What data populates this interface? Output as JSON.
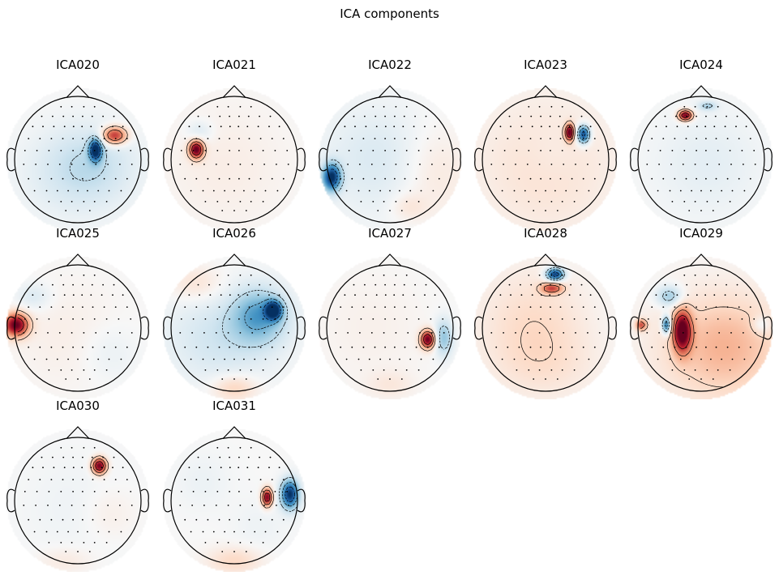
{
  "figure": {
    "title": "ICA components"
  },
  "colormap": {
    "negative": "#053061",
    "neutral": "#f7f7f7",
    "positive": "#67001f"
  },
  "chart_data": {
    "type": "heatmap",
    "title": "ICA components",
    "layout": {
      "rows": 3,
      "cols": 5
    },
    "components": [
      {
        "name": "ICA020",
        "sources": [
          {
            "x": 0.28,
            "y": -0.15,
            "w": -1.0,
            "sx": 0.07,
            "sy": 0.12
          },
          {
            "x": 0.2,
            "y": 0.1,
            "w": -0.25,
            "sx": 0.5,
            "sy": 0.45
          },
          {
            "x": 0.58,
            "y": -0.38,
            "w": 0.8,
            "sx": 0.14,
            "sy": 0.1
          },
          {
            "x": -0.4,
            "y": 0.3,
            "w": -0.06,
            "sx": 0.5,
            "sy": 0.5
          }
        ]
      },
      {
        "name": "ICA021",
        "sources": [
          {
            "x": -0.6,
            "y": -0.16,
            "w": 1.0,
            "sx": 0.08,
            "sy": 0.1
          },
          {
            "x": -0.15,
            "y": 0.1,
            "w": 0.07,
            "sx": 0.7,
            "sy": 0.7
          },
          {
            "x": -0.55,
            "y": -0.45,
            "w": -0.15,
            "sx": 0.15,
            "sy": 0.12
          }
        ]
      },
      {
        "name": "ICA022",
        "sources": [
          {
            "x": -0.92,
            "y": 0.28,
            "w": -1.0,
            "sx": 0.1,
            "sy": 0.15
          },
          {
            "x": -0.2,
            "y": 0.0,
            "w": -0.15,
            "sx": 0.6,
            "sy": 0.6
          },
          {
            "x": 0.7,
            "y": 0.2,
            "w": 0.12,
            "sx": 0.4,
            "sy": 0.5
          },
          {
            "x": 0.3,
            "y": 0.75,
            "w": 0.12,
            "sx": 0.2,
            "sy": 0.15
          }
        ]
      },
      {
        "name": "ICA023",
        "sources": [
          {
            "x": 0.38,
            "y": -0.43,
            "w": 1.0,
            "sx": 0.05,
            "sy": 0.09
          },
          {
            "x": 0.6,
            "y": -0.4,
            "w": -0.95,
            "sx": 0.07,
            "sy": 0.1
          },
          {
            "x": 0.0,
            "y": 0.1,
            "w": 0.15,
            "sx": 0.8,
            "sy": 0.8
          },
          {
            "x": 0.1,
            "y": -0.1,
            "w": -0.05,
            "sx": 0.3,
            "sy": 0.3
          }
        ]
      },
      {
        "name": "ICA024",
        "sources": [
          {
            "x": -0.25,
            "y": -0.7,
            "w": 1.0,
            "sx": 0.08,
            "sy": 0.06
          },
          {
            "x": 0.1,
            "y": 0.05,
            "w": -0.1,
            "sx": 0.6,
            "sy": 0.6
          },
          {
            "x": 0.1,
            "y": -0.85,
            "w": -0.3,
            "sx": 0.1,
            "sy": 0.05
          }
        ]
      },
      {
        "name": "ICA025",
        "sources": [
          {
            "x": -0.98,
            "y": -0.05,
            "w": 1.0,
            "sx": 0.14,
            "sy": 0.13
          },
          {
            "x": -0.7,
            "y": -0.5,
            "w": -0.15,
            "sx": 0.2,
            "sy": 0.15
          },
          {
            "x": -0.2,
            "y": 0.1,
            "w": 0.06,
            "sx": 0.6,
            "sy": 0.6
          },
          {
            "x": 0.5,
            "y": 0.4,
            "w": -0.08,
            "sx": 0.3,
            "sy": 0.3
          }
        ]
      },
      {
        "name": "ICA026",
        "sources": [
          {
            "x": 0.62,
            "y": -0.28,
            "w": -1.0,
            "sx": 0.09,
            "sy": 0.1
          },
          {
            "x": 0.4,
            "y": -0.2,
            "w": -0.5,
            "sx": 0.3,
            "sy": 0.3
          },
          {
            "x": -0.2,
            "y": 0.15,
            "w": -0.2,
            "sx": 0.6,
            "sy": 0.5
          },
          {
            "x": 0.0,
            "y": 0.95,
            "w": 0.25,
            "sx": 0.25,
            "sy": 0.15
          },
          {
            "x": -0.6,
            "y": -0.7,
            "w": 0.15,
            "sx": 0.3,
            "sy": 0.2
          }
        ]
      },
      {
        "name": "ICA027",
        "sources": [
          {
            "x": 0.6,
            "y": 0.18,
            "w": 1.0,
            "sx": 0.08,
            "sy": 0.1
          },
          {
            "x": 0.85,
            "y": 0.15,
            "w": -0.4,
            "sx": 0.1,
            "sy": 0.2
          },
          {
            "x": -0.3,
            "y": 0.0,
            "w": 0.05,
            "sx": 0.6,
            "sy": 0.6
          },
          {
            "x": 0.0,
            "y": 0.9,
            "w": 0.1,
            "sx": 0.25,
            "sy": 0.15
          }
        ]
      },
      {
        "name": "ICA028",
        "sources": [
          {
            "x": 0.15,
            "y": -0.85,
            "w": -1.0,
            "sx": 0.1,
            "sy": 0.07
          },
          {
            "x": 0.1,
            "y": -0.63,
            "w": 0.6,
            "sx": 0.12,
            "sy": 0.06
          },
          {
            "x": -0.2,
            "y": -0.1,
            "w": 0.18,
            "sx": 0.6,
            "sy": 0.6
          },
          {
            "x": 0.0,
            "y": 0.6,
            "w": 0.1,
            "sx": 0.6,
            "sy": 0.4
          }
        ]
      },
      {
        "name": "ICA029",
        "sources": [
          {
            "x": -0.3,
            "y": 0.05,
            "w": 1.0,
            "sx": 0.1,
            "sy": 0.23
          },
          {
            "x": -0.55,
            "y": -0.05,
            "w": -0.8,
            "sx": 0.05,
            "sy": 0.1
          },
          {
            "x": -0.95,
            "y": -0.05,
            "w": 0.6,
            "sx": 0.06,
            "sy": 0.06
          },
          {
            "x": -0.5,
            "y": -0.5,
            "w": -0.4,
            "sx": 0.15,
            "sy": 0.12
          },
          {
            "x": 0.35,
            "y": 0.3,
            "w": 0.35,
            "sx": 0.7,
            "sy": 0.6
          },
          {
            "x": 0.95,
            "y": -0.05,
            "w": -0.2,
            "sx": 0.1,
            "sy": 0.1
          }
        ]
      },
      {
        "name": "ICA030",
        "sources": [
          {
            "x": 0.34,
            "y": -0.55,
            "w": 1.0,
            "sx": 0.08,
            "sy": 0.09
          },
          {
            "x": 0.0,
            "y": 0.1,
            "w": -0.05,
            "sx": 0.6,
            "sy": 0.6
          },
          {
            "x": -0.2,
            "y": 0.95,
            "w": 0.1,
            "sx": 0.3,
            "sy": 0.15
          },
          {
            "x": 0.5,
            "y": 0.2,
            "w": 0.08,
            "sx": 0.3,
            "sy": 0.3
          }
        ]
      },
      {
        "name": "ICA031",
        "sources": [
          {
            "x": 0.52,
            "y": -0.05,
            "w": 0.95,
            "sx": 0.06,
            "sy": 0.1
          },
          {
            "x": 0.88,
            "y": -0.1,
            "w": -1.0,
            "sx": 0.1,
            "sy": 0.16
          },
          {
            "x": 0.0,
            "y": 0.95,
            "w": 0.2,
            "sx": 0.3,
            "sy": 0.15
          },
          {
            "x": -0.5,
            "y": -0.3,
            "w": -0.06,
            "sx": 0.3,
            "sy": 0.3
          },
          {
            "x": 0.4,
            "y": 0.4,
            "w": -0.05,
            "sx": 0.3,
            "sy": 0.3
          }
        ]
      }
    ]
  }
}
